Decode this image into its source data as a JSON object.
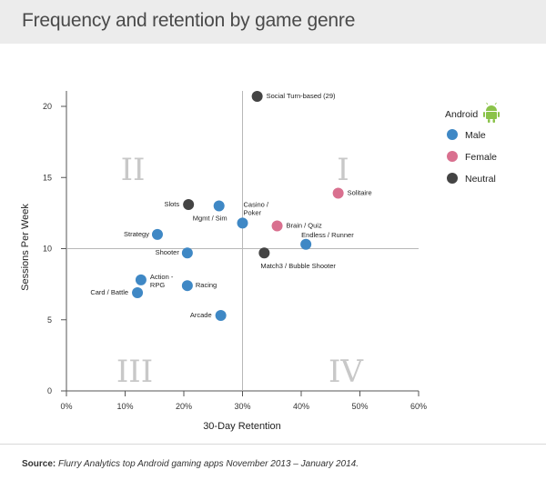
{
  "header": {
    "title": "Frequency and retention by game genre"
  },
  "legend": {
    "title": "Android",
    "icon": "android-robot-icon",
    "items": [
      {
        "label": "Male",
        "color": "#3f88c5"
      },
      {
        "label": "Female",
        "color": "#d9708f"
      },
      {
        "label": "Neutral",
        "color": "#444444"
      }
    ]
  },
  "quadrants": [
    "I",
    "II",
    "III",
    "IV"
  ],
  "source": {
    "label": "Source:",
    "text": "Flurry Analytics top Android gaming apps November 2013 – January 2014."
  },
  "chart_data": {
    "type": "scatter",
    "xlabel": "30-Day Retention",
    "ylabel": "Sessions Per Week",
    "xlim": [
      0,
      60
    ],
    "ylim": [
      0,
      20
    ],
    "x_ticks": [
      "0%",
      "10%",
      "20%",
      "30%",
      "40%",
      "50%",
      "60%"
    ],
    "y_ticks": [
      "0",
      "5",
      "10",
      "15",
      "20"
    ],
    "crosshair": {
      "x": 30,
      "y": 10
    },
    "points": [
      {
        "label": "Social Turn-based (29)",
        "x": 32.5,
        "y": 20.7,
        "group": "Neutral"
      },
      {
        "label": "Solitaire",
        "x": 46.3,
        "y": 13.9,
        "group": "Female"
      },
      {
        "label": "Slots",
        "x": 20.8,
        "y": 13.1,
        "group": "Neutral"
      },
      {
        "label": "Mgmt / Sim",
        "x": 26.0,
        "y": 13.0,
        "group": "Male"
      },
      {
        "label": "Casino / Poker",
        "x": 30.0,
        "y": 11.8,
        "group": "Male"
      },
      {
        "label": "Brain / Quiz",
        "x": 35.9,
        "y": 11.6,
        "group": "Female"
      },
      {
        "label": "Strategy",
        "x": 15.5,
        "y": 11.0,
        "group": "Male"
      },
      {
        "label": "Endless / Runner",
        "x": 40.8,
        "y": 10.3,
        "group": "Male"
      },
      {
        "label": "Shooter",
        "x": 20.6,
        "y": 9.7,
        "group": "Male"
      },
      {
        "label": "Match3 / Bubble Shooter",
        "x": 33.7,
        "y": 9.7,
        "group": "Neutral"
      },
      {
        "label": "Action - RPG",
        "x": 12.7,
        "y": 7.8,
        "group": "Male"
      },
      {
        "label": "Racing",
        "x": 20.6,
        "y": 7.4,
        "group": "Male"
      },
      {
        "label": "Card / Battle",
        "x": 12.1,
        "y": 6.9,
        "group": "Male"
      },
      {
        "label": "Arcade",
        "x": 26.3,
        "y": 5.3,
        "group": "Male"
      }
    ]
  }
}
